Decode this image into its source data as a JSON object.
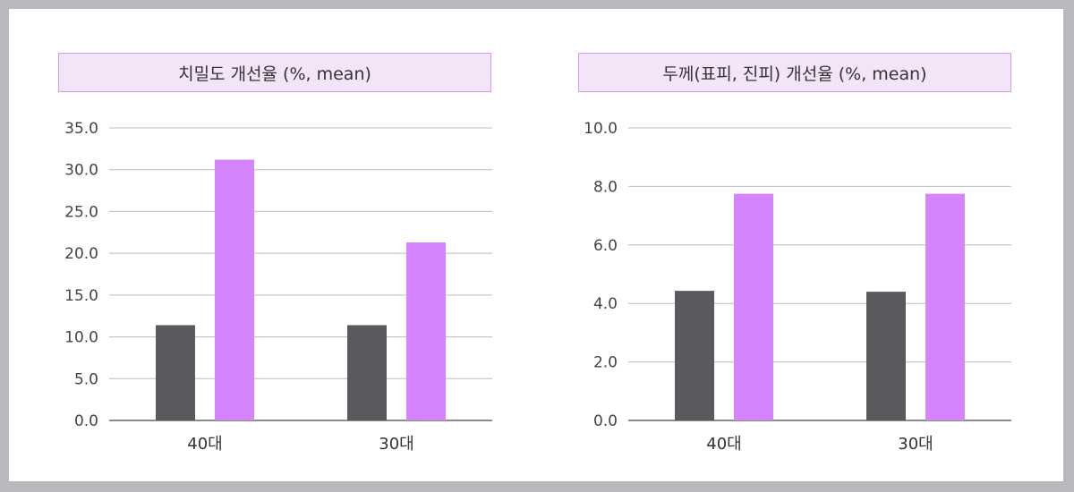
{
  "colors": {
    "series_a": "#5b595d",
    "series_b": "#d585fb",
    "grid": "#bdbdbd",
    "axis": "#666666"
  },
  "chart_data": [
    {
      "type": "bar",
      "title": "치밀도 개선율 (%, mean)",
      "categories": [
        "40대",
        "30대"
      ],
      "series": [
        {
          "values": [
            11.4,
            11.4
          ]
        },
        {
          "values": [
            31.2,
            21.3
          ]
        }
      ],
      "ylim": [
        0,
        35
      ],
      "yticks": [
        "0.0",
        "5.0",
        "10.0",
        "15.0",
        "20.0",
        "25.0",
        "30.0",
        "35.0"
      ],
      "grid": true,
      "xlabel": "",
      "ylabel": ""
    },
    {
      "type": "bar",
      "title": "두께(표피, 진피) 개선율 (%, mean)",
      "categories": [
        "40대",
        "30대"
      ],
      "series": [
        {
          "values": [
            4.43,
            4.4
          ]
        },
        {
          "values": [
            7.75,
            7.75
          ]
        }
      ],
      "ylim": [
        0,
        10
      ],
      "yticks": [
        "0.0",
        "2.0",
        "4.0",
        "6.0",
        "8.0",
        "10.0"
      ],
      "grid": true,
      "xlabel": "",
      "ylabel": ""
    }
  ]
}
